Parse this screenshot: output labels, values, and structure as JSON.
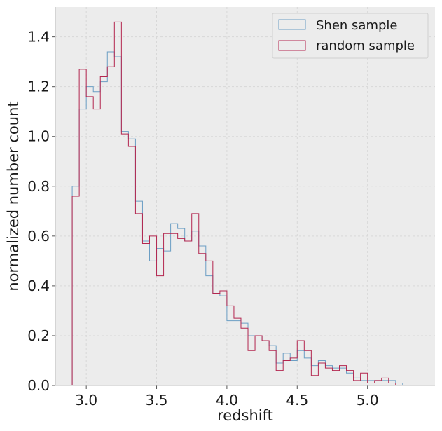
{
  "chart_data": {
    "type": "histogram",
    "xlabel": "redshift",
    "ylabel": "normalized number count",
    "xlim": [
      2.78,
      5.48
    ],
    "ylim": [
      0.0,
      1.52
    ],
    "x_ticks": [
      "3.0",
      "3.5",
      "4.0",
      "4.5",
      "5.0"
    ],
    "y_ticks": [
      "0.0",
      "0.2",
      "0.4",
      "0.6",
      "0.8",
      "1.0",
      "1.2",
      "1.4"
    ],
    "grid": true,
    "legend_position": "upper right",
    "bin_start": 2.9,
    "bin_width": 0.05,
    "series": [
      {
        "name": "Shen sample",
        "color": "#6b9ec4",
        "values": [
          0.8,
          1.11,
          1.2,
          1.18,
          1.22,
          1.34,
          1.32,
          1.02,
          0.99,
          0.74,
          0.58,
          0.5,
          0.55,
          0.54,
          0.65,
          0.63,
          0.58,
          0.62,
          0.56,
          0.44,
          0.37,
          0.36,
          0.26,
          0.26,
          0.25,
          0.2,
          0.2,
          0.18,
          0.16,
          0.09,
          0.13,
          0.1,
          0.14,
          0.11,
          0.08,
          0.1,
          0.08,
          0.07,
          0.07,
          0.05,
          0.03,
          0.02,
          0.02,
          0.02,
          0.02,
          0.02,
          0.01
        ]
      },
      {
        "name": "random sample",
        "color": "#b3264f",
        "values": [
          0.76,
          1.27,
          1.16,
          1.11,
          1.24,
          1.28,
          1.46,
          1.01,
          0.96,
          0.69,
          0.57,
          0.6,
          0.44,
          0.61,
          0.61,
          0.59,
          0.58,
          0.69,
          0.53,
          0.5,
          0.37,
          0.38,
          0.32,
          0.27,
          0.23,
          0.14,
          0.2,
          0.18,
          0.14,
          0.06,
          0.1,
          0.11,
          0.18,
          0.14,
          0.04,
          0.09,
          0.07,
          0.06,
          0.08,
          0.06,
          0.02,
          0.05,
          0.01,
          0.02,
          0.03,
          0.01,
          0.0
        ]
      }
    ]
  }
}
